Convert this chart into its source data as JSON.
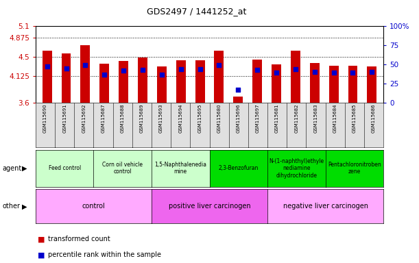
{
  "title": "GDS2497 / 1441252_at",
  "samples": [
    "GSM115690",
    "GSM115691",
    "GSM115692",
    "GSM115687",
    "GSM115688",
    "GSM115689",
    "GSM115693",
    "GSM115694",
    "GSM115695",
    "GSM115680",
    "GSM115696",
    "GSM115697",
    "GSM115681",
    "GSM115682",
    "GSM115683",
    "GSM115684",
    "GSM115685",
    "GSM115686"
  ],
  "transformed_count": [
    4.62,
    4.57,
    4.73,
    4.37,
    4.42,
    4.48,
    4.31,
    4.43,
    4.43,
    4.62,
    3.72,
    4.45,
    4.35,
    4.62,
    4.38,
    4.32,
    4.33,
    4.31
  ],
  "percentile": [
    47,
    45,
    49,
    37,
    42,
    43,
    37,
    44,
    44,
    49,
    17,
    43,
    39,
    44,
    40,
    39,
    39,
    40
  ],
  "ymin": 3.6,
  "ymax": 5.1,
  "yticks": [
    3.6,
    4.125,
    4.5,
    4.875,
    5.1
  ],
  "ytick_labels": [
    "3.6",
    "4.125",
    "4.5",
    "4.875",
    "5.1"
  ],
  "right_yticks": [
    0,
    25,
    50,
    75,
    100
  ],
  "right_ytick_labels": [
    "0",
    "25",
    "50",
    "75",
    "100%"
  ],
  "bar_color": "#cc0000",
  "dot_color": "#0000cc",
  "agent_groups": [
    {
      "label": "Feed control",
      "start": 0,
      "end": 3,
      "color": "#ccffcc"
    },
    {
      "label": "Corn oil vehicle\ncontrol",
      "start": 3,
      "end": 6,
      "color": "#ccffcc"
    },
    {
      "label": "1,5-Naphthalenedia\nmine",
      "start": 6,
      "end": 9,
      "color": "#ccffcc"
    },
    {
      "label": "2,3-Benzofuran",
      "start": 9,
      "end": 12,
      "color": "#00dd00"
    },
    {
      "label": "N-(1-naphthyl)ethyle\nnediamine\ndihydrochloride",
      "start": 12,
      "end": 15,
      "color": "#00dd00"
    },
    {
      "label": "Pentachloronitroben\nzene",
      "start": 15,
      "end": 18,
      "color": "#00dd00"
    }
  ],
  "other_groups": [
    {
      "label": "control",
      "start": 0,
      "end": 6,
      "color": "#ffaaff"
    },
    {
      "label": "positive liver carcinogen",
      "start": 6,
      "end": 12,
      "color": "#ee66ee"
    },
    {
      "label": "negative liver carcinogen",
      "start": 12,
      "end": 18,
      "color": "#ffaaff"
    }
  ],
  "legend_red": "transformed count",
  "legend_blue": "percentile rank within the sample",
  "tick_color_left": "#cc0000",
  "tick_color_right": "#0000cc",
  "bg_plot": "#ffffff",
  "xtick_bg": "#e0e0e0"
}
